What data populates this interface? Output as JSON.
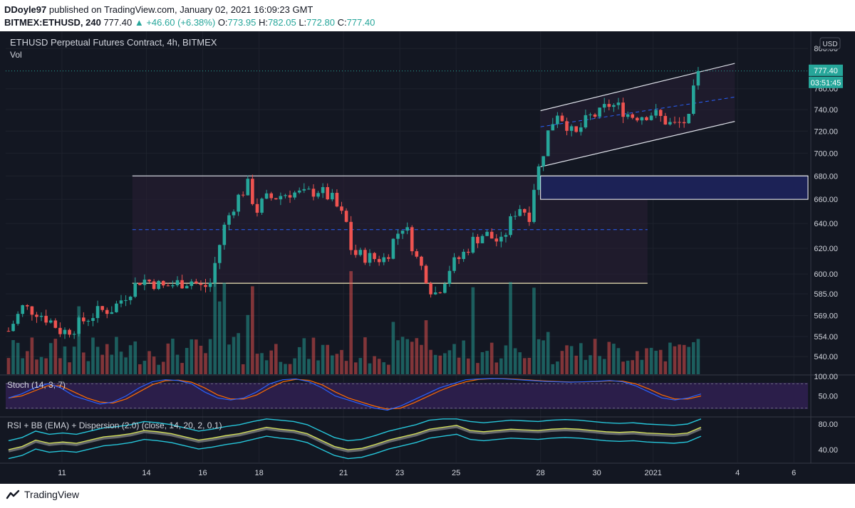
{
  "header": {
    "author": "DDoyle97",
    "published": "published on TradingView.com, January 02, 2021 16:09:23 GMT",
    "symbol": "BITMEX:ETHUSD, 240",
    "price": "777.40",
    "change": "+46.60 (+6.38%)",
    "o_label": "O:",
    "o_val": "773.95",
    "h_label": "H:",
    "h_val": "782.05",
    "l_label": "L:",
    "l_val": "772.80",
    "c_label": "C:",
    "c_val": "777.40",
    "up_arrow": "▲"
  },
  "chart_title": "ETHUSD Perpetual Futures Contract, 4h, BITMEX",
  "vol_label": "Vol",
  "currency": "USD",
  "price_tag": "777.40",
  "timer_tag": "03:51:45",
  "stoch_label": "Stoch (14, 3, 7)",
  "rsi_label": "RSI + BB (EMA) + Dispersion (2.0) (close, 14, 20, 2, 0.1)",
  "footer_brand": "TradingView",
  "colors": {
    "bg": "#131722",
    "up": "#26a69a",
    "down": "#ef5350",
    "grid": "#1e222d",
    "zone": "#1c2256",
    "stoch_bg": "#2b1e4a",
    "accent": "#2962ff"
  },
  "chart_data": {
    "type": "candlestick",
    "title": "ETHUSD Perpetual Futures Contract, 4h, BITMEX",
    "y_ticks": [
      "800.00",
      "777.40",
      "760.00",
      "740.00",
      "720.00",
      "700.00",
      "680.00",
      "660.00",
      "640.00",
      "620.00",
      "600.00",
      "585.00",
      "569.00",
      "554.00",
      "540.00"
    ],
    "y_scale": "log",
    "ylim": [
      528,
      806
    ],
    "x_ticks": [
      {
        "label": "11",
        "t": 11
      },
      {
        "label": "14",
        "t": 14
      },
      {
        "label": "16",
        "t": 16
      },
      {
        "label": "18",
        "t": 18
      },
      {
        "label": "21",
        "t": 21
      },
      {
        "label": "23",
        "t": 23
      },
      {
        "label": "25",
        "t": 25
      },
      {
        "label": "28",
        "t": 28
      },
      {
        "label": "30",
        "t": 30
      },
      {
        "label": "2021",
        "t": 32
      },
      {
        "label": "4",
        "t": 35
      },
      {
        "label": "6",
        "t": 37
      }
    ],
    "x_range_days": [
      9,
      37.5
    ],
    "last_close": 777.4,
    "price_path": [
      [
        9.1,
        558
      ],
      [
        9.6,
        575
      ],
      [
        10.1,
        572
      ],
      [
        10.6,
        565
      ],
      [
        11.0,
        557
      ],
      [
        11.4,
        560
      ],
      [
        11.8,
        566
      ],
      [
        12.3,
        572
      ],
      [
        12.8,
        574
      ],
      [
        13.3,
        585
      ],
      [
        13.8,
        596
      ],
      [
        14.2,
        594
      ],
      [
        14.6,
        590
      ],
      [
        15.1,
        593
      ],
      [
        15.6,
        595
      ],
      [
        16.0,
        589
      ],
      [
        16.3,
        594
      ],
      [
        16.5,
        615
      ],
      [
        16.8,
        640
      ],
      [
        17.2,
        660
      ],
      [
        17.6,
        672
      ],
      [
        17.9,
        650
      ],
      [
        18.2,
        660
      ],
      [
        18.6,
        662
      ],
      [
        19.1,
        666
      ],
      [
        19.6,
        664
      ],
      [
        20.1,
        668
      ],
      [
        20.6,
        660
      ],
      [
        21.1,
        640
      ],
      [
        21.3,
        616
      ],
      [
        21.7,
        614
      ],
      [
        22.1,
        612
      ],
      [
        22.5,
        612
      ],
      [
        22.8,
        628
      ],
      [
        23.1,
        638
      ],
      [
        23.3,
        632
      ],
      [
        23.6,
        612
      ],
      [
        23.9,
        600
      ],
      [
        24.2,
        584
      ],
      [
        24.5,
        592
      ],
      [
        24.8,
        606
      ],
      [
        25.2,
        614
      ],
      [
        25.6,
        626
      ],
      [
        26.0,
        632
      ],
      [
        26.3,
        628
      ],
      [
        26.6,
        624
      ],
      [
        26.9,
        640
      ],
      [
        27.2,
        655
      ],
      [
        27.6,
        647
      ],
      [
        27.8,
        676
      ],
      [
        28.0,
        692
      ],
      [
        28.3,
        722
      ],
      [
        28.6,
        738
      ],
      [
        28.9,
        728
      ],
      [
        29.2,
        714
      ],
      [
        29.5,
        726
      ],
      [
        29.8,
        734
      ],
      [
        30.1,
        736
      ],
      [
        30.4,
        745
      ],
      [
        30.8,
        742
      ],
      [
        31.2,
        734
      ],
      [
        31.6,
        735
      ],
      [
        32.0,
        737
      ],
      [
        32.4,
        730
      ],
      [
        32.7,
        725
      ],
      [
        33.0,
        728
      ],
      [
        33.3,
        730
      ],
      [
        33.5,
        770
      ],
      [
        33.7,
        777.4
      ]
    ],
    "annotations": {
      "range_top": 680,
      "range_mid": 635,
      "range_bottom": 593,
      "range_span_days": [
        13.5,
        31.8
      ],
      "supply_zone": {
        "from": 660,
        "to": 680,
        "start_day": 28.0
      },
      "channel": {
        "start_day": 28.0,
        "end_day": 34.9,
        "upper": [
          739,
          785
        ],
        "mid": [
          724,
          752
        ],
        "lower": [
          688,
          729
        ]
      }
    },
    "volume": {
      "axis_labels": [],
      "description": "colored volume bars per candle"
    },
    "stoch": {
      "name": "Stoch (14, 3, 7)",
      "ylim": [
        0,
        100
      ],
      "levels": [
        80,
        20
      ],
      "tick_labels": [
        "100.00",
        "50.00"
      ],
      "k": [
        45,
        55,
        70,
        80,
        70,
        50,
        40,
        30,
        35,
        50,
        70,
        85,
        90,
        88,
        80,
        60,
        45,
        40,
        45,
        60,
        80,
        90,
        92,
        85,
        70,
        50,
        40,
        30,
        20,
        15,
        25,
        40,
        55,
        70,
        80,
        90,
        92,
        93,
        92,
        90,
        88,
        86,
        85,
        84,
        85,
        86,
        88,
        85,
        75,
        60,
        45,
        40,
        45,
        55
      ]
    },
    "rsi": {
      "name": "RSI + BB (EMA) + Dispersion (2.0) (close, 14, 20, 2, 0.1)",
      "ylim": [
        20,
        90
      ],
      "tick_labels": [
        "80.00",
        "40.00"
      ],
      "rsi": [
        40,
        45,
        55,
        50,
        52,
        50,
        55,
        60,
        62,
        65,
        70,
        68,
        65,
        60,
        55,
        58,
        62,
        65,
        70,
        75,
        72,
        70,
        65,
        55,
        45,
        40,
        42,
        48,
        55,
        60,
        65,
        72,
        75,
        78,
        70,
        68,
        70,
        72,
        71,
        70,
        72,
        73,
        72,
        70,
        68,
        67,
        68,
        66,
        65,
        64,
        66,
        75
      ]
    }
  }
}
